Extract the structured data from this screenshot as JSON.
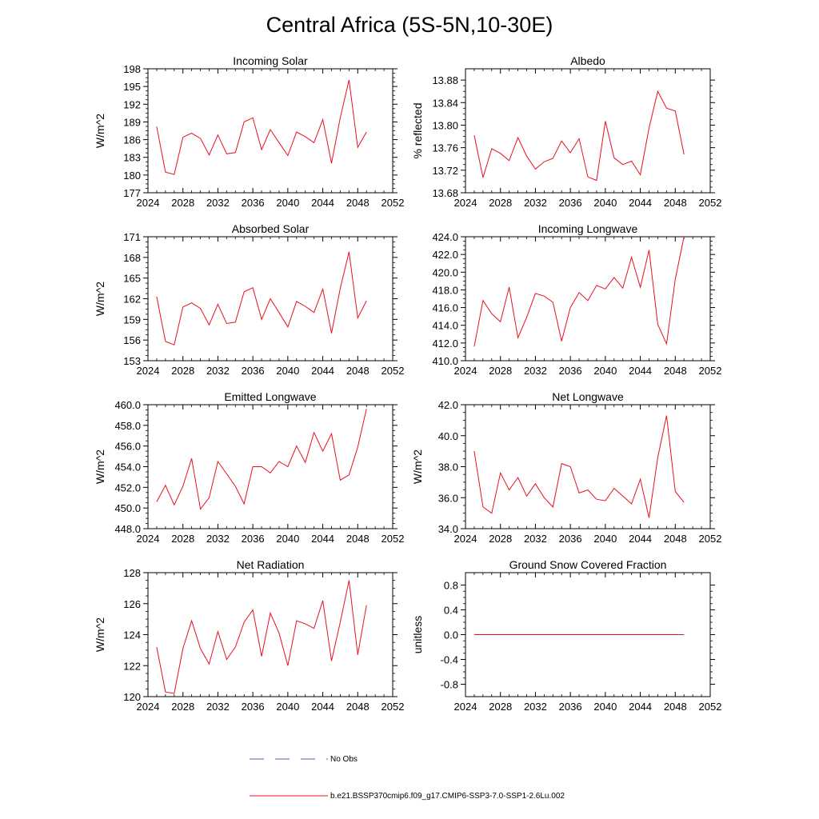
{
  "figure": {
    "title": "Central Africa (5S-5N,10-30E)",
    "line_color": "#e8101e",
    "obs_color": "#5a5aa8"
  },
  "legend": {
    "obs_label": "No Obs",
    "model_label": "b.e21.BSSP370cmip6.f09_g17.CMIP6-SSP3-7.0-SSP1-2.6Lu.002"
  },
  "chart_data": [
    {
      "type": "line",
      "title": "Incoming Solar",
      "xlabel": "",
      "ylabel": "W/m^2",
      "xlim": [
        2024,
        2052
      ],
      "ylim": [
        177,
        198
      ],
      "x_ticks": [
        2024,
        2028,
        2032,
        2036,
        2040,
        2044,
        2048,
        2052
      ],
      "y_ticks": [
        177,
        180,
        183,
        186,
        189,
        192,
        195,
        198
      ],
      "y_tick_labels": [
        "177",
        "180",
        "183",
        "186",
        "189",
        "192",
        "195",
        "198"
      ],
      "x": [
        2025,
        2026,
        2027,
        2028,
        2029,
        2030,
        2031,
        2032,
        2033,
        2034,
        2035,
        2036,
        2037,
        2038,
        2039,
        2040,
        2041,
        2042,
        2043,
        2044,
        2045,
        2046,
        2047,
        2048,
        2049
      ],
      "values": [
        188.2,
        180.5,
        180.1,
        186.4,
        187.1,
        186.2,
        183.4,
        186.8,
        183.6,
        183.8,
        189.0,
        189.7,
        184.3,
        187.7,
        185.5,
        183.3,
        187.3,
        186.5,
        185.5,
        189.4,
        182.0,
        189.7,
        196.1,
        184.7,
        187.3
      ]
    },
    {
      "type": "line",
      "title": "Albedo",
      "xlabel": "",
      "ylabel": "% reflected",
      "xlim": [
        2024,
        2052
      ],
      "ylim": [
        13.68,
        13.9
      ],
      "x_ticks": [
        2024,
        2028,
        2032,
        2036,
        2040,
        2044,
        2048,
        2052
      ],
      "y_ticks": [
        13.68,
        13.72,
        13.76,
        13.8,
        13.84,
        13.88
      ],
      "y_tick_labels": [
        "13.68",
        "13.72",
        "13.76",
        "13.80",
        "13.84",
        "13.88"
      ],
      "x": [
        2025,
        2026,
        2027,
        2028,
        2029,
        2030,
        2031,
        2032,
        2033,
        2034,
        2035,
        2036,
        2037,
        2038,
        2039,
        2040,
        2041,
        2042,
        2043,
        2044,
        2045,
        2046,
        2047,
        2048,
        2049
      ],
      "values": [
        13.782,
        13.707,
        13.758,
        13.75,
        13.737,
        13.778,
        13.745,
        13.722,
        13.735,
        13.741,
        13.772,
        13.751,
        13.776,
        13.708,
        13.702,
        13.807,
        13.742,
        13.73,
        13.736,
        13.712,
        13.795,
        13.86,
        13.83,
        13.825,
        13.748
      ]
    },
    {
      "type": "line",
      "title": "Absorbed Solar",
      "xlabel": "",
      "ylabel": "W/m^2",
      "xlim": [
        2024,
        2052
      ],
      "ylim": [
        153,
        171
      ],
      "x_ticks": [
        2024,
        2028,
        2032,
        2036,
        2040,
        2044,
        2048,
        2052
      ],
      "y_ticks": [
        153,
        156,
        159,
        162,
        165,
        168,
        171
      ],
      "y_tick_labels": [
        "153",
        "156",
        "159",
        "162",
        "165",
        "168",
        "171"
      ],
      "x": [
        2025,
        2026,
        2027,
        2028,
        2029,
        2030,
        2031,
        2032,
        2033,
        2034,
        2035,
        2036,
        2037,
        2038,
        2039,
        2040,
        2041,
        2042,
        2043,
        2044,
        2045,
        2046,
        2047,
        2048,
        2049
      ],
      "values": [
        162.3,
        155.8,
        155.3,
        160.8,
        161.4,
        160.6,
        158.2,
        161.2,
        158.4,
        158.6,
        163.0,
        163.6,
        159.0,
        162.0,
        160.0,
        157.9,
        161.6,
        160.9,
        160.0,
        163.4,
        157.0,
        163.5,
        168.8,
        159.2,
        161.7
      ]
    },
    {
      "type": "line",
      "title": "Incoming Longwave",
      "xlabel": "",
      "ylabel": "",
      "xlim": [
        2024,
        2052
      ],
      "ylim": [
        410,
        424
      ],
      "x_ticks": [
        2024,
        2028,
        2032,
        2036,
        2040,
        2044,
        2048,
        2052
      ],
      "y_ticks": [
        410,
        412,
        414,
        416,
        418,
        420,
        422,
        424
      ],
      "y_tick_labels": [
        "410.0",
        "412.0",
        "414.0",
        "416.0",
        "418.0",
        "420.0",
        "422.0",
        "424.0"
      ],
      "x": [
        2025,
        2026,
        2027,
        2028,
        2029,
        2030,
        2031,
        2032,
        2033,
        2034,
        2035,
        2036,
        2037,
        2038,
        2039,
        2040,
        2041,
        2042,
        2043,
        2044,
        2045,
        2046,
        2047,
        2048,
        2049
      ],
      "values": [
        411.6,
        416.8,
        415.3,
        414.4,
        418.3,
        412.6,
        414.9,
        417.6,
        417.3,
        416.6,
        412.2,
        416.0,
        417.7,
        416.8,
        418.5,
        418.1,
        419.4,
        418.2,
        421.7,
        418.3,
        422.5,
        414.1,
        411.9,
        419.2,
        424.0
      ]
    },
    {
      "type": "line",
      "title": "Emitted Longwave",
      "xlabel": "",
      "ylabel": "W/m^2",
      "xlim": [
        2024,
        2052
      ],
      "ylim": [
        448,
        460
      ],
      "x_ticks": [
        2024,
        2028,
        2032,
        2036,
        2040,
        2044,
        2048,
        2052
      ],
      "y_ticks": [
        448,
        450,
        452,
        454,
        456,
        458,
        460
      ],
      "y_tick_labels": [
        "448.0",
        "450.0",
        "452.0",
        "454.0",
        "456.0",
        "458.0",
        "460.0"
      ],
      "x": [
        2025,
        2026,
        2027,
        2028,
        2029,
        2030,
        2031,
        2032,
        2033,
        2034,
        2035,
        2036,
        2037,
        2038,
        2039,
        2040,
        2041,
        2042,
        2043,
        2044,
        2045,
        2046,
        2047,
        2048,
        2049
      ],
      "values": [
        450.6,
        452.2,
        450.3,
        452.1,
        454.8,
        449.9,
        451.0,
        454.5,
        453.3,
        452.1,
        450.4,
        454.0,
        454.0,
        453.4,
        454.5,
        454.0,
        456.0,
        454.4,
        457.3,
        455.5,
        457.2,
        452.7,
        453.2,
        455.9,
        459.6
      ]
    },
    {
      "type": "line",
      "title": "Net Longwave",
      "xlabel": "",
      "ylabel": "W/m^2",
      "xlim": [
        2024,
        2052
      ],
      "ylim": [
        34,
        42
      ],
      "x_ticks": [
        2024,
        2028,
        2032,
        2036,
        2040,
        2044,
        2048,
        2052
      ],
      "y_ticks": [
        34,
        36,
        38,
        40,
        42
      ],
      "y_tick_labels": [
        "34.0",
        "36.0",
        "38.0",
        "40.0",
        "42.0"
      ],
      "x": [
        2025,
        2026,
        2027,
        2028,
        2029,
        2030,
        2031,
        2032,
        2033,
        2034,
        2035,
        2036,
        2037,
        2038,
        2039,
        2040,
        2041,
        2042,
        2043,
        2044,
        2045,
        2046,
        2047,
        2048,
        2049
      ],
      "values": [
        39.0,
        35.4,
        35.0,
        37.6,
        36.5,
        37.3,
        36.1,
        36.9,
        36.0,
        35.4,
        38.2,
        38.0,
        36.3,
        36.5,
        35.9,
        35.8,
        36.6,
        36.1,
        35.6,
        37.2,
        34.7,
        38.6,
        41.3,
        36.4,
        35.7
      ]
    },
    {
      "type": "line",
      "title": "Net Radiation",
      "xlabel": "",
      "ylabel": "W/m^2",
      "xlim": [
        2024,
        2052
      ],
      "ylim": [
        120,
        128
      ],
      "x_ticks": [
        2024,
        2028,
        2032,
        2036,
        2040,
        2044,
        2048,
        2052
      ],
      "y_ticks": [
        120,
        122,
        124,
        126,
        128
      ],
      "y_tick_labels": [
        "120",
        "122",
        "124",
        "126",
        "128"
      ],
      "x": [
        2025,
        2026,
        2027,
        2028,
        2029,
        2030,
        2031,
        2032,
        2033,
        2034,
        2035,
        2036,
        2037,
        2038,
        2039,
        2040,
        2041,
        2042,
        2043,
        2044,
        2045,
        2046,
        2047,
        2048,
        2049
      ],
      "values": [
        123.2,
        120.3,
        120.2,
        123.1,
        124.9,
        123.1,
        122.1,
        124.2,
        122.4,
        123.2,
        124.8,
        125.6,
        122.6,
        125.4,
        124.1,
        122.0,
        124.9,
        124.7,
        124.4,
        126.2,
        122.3,
        124.8,
        127.5,
        122.7,
        125.9
      ]
    },
    {
      "type": "line",
      "title": "Ground Snow Covered Fraction",
      "xlabel": "",
      "ylabel": "unitless",
      "xlim": [
        2024,
        2052
      ],
      "ylim": [
        -1.0,
        1.0
      ],
      "x_ticks": [
        2024,
        2028,
        2032,
        2036,
        2040,
        2044,
        2048,
        2052
      ],
      "y_ticks": [
        -0.8,
        -0.4,
        0.0,
        0.4,
        0.8
      ],
      "y_tick_labels": [
        "-0.8",
        "-0.4",
        "0.0",
        "0.4",
        "0.8"
      ],
      "x": [
        2025,
        2026,
        2027,
        2028,
        2029,
        2030,
        2031,
        2032,
        2033,
        2034,
        2035,
        2036,
        2037,
        2038,
        2039,
        2040,
        2041,
        2042,
        2043,
        2044,
        2045,
        2046,
        2047,
        2048,
        2049
      ],
      "values": [
        0,
        0,
        0,
        0,
        0,
        0,
        0,
        0,
        0,
        0,
        0,
        0,
        0,
        0,
        0,
        0,
        0,
        0,
        0,
        0,
        0,
        0,
        0,
        0,
        0
      ]
    }
  ]
}
